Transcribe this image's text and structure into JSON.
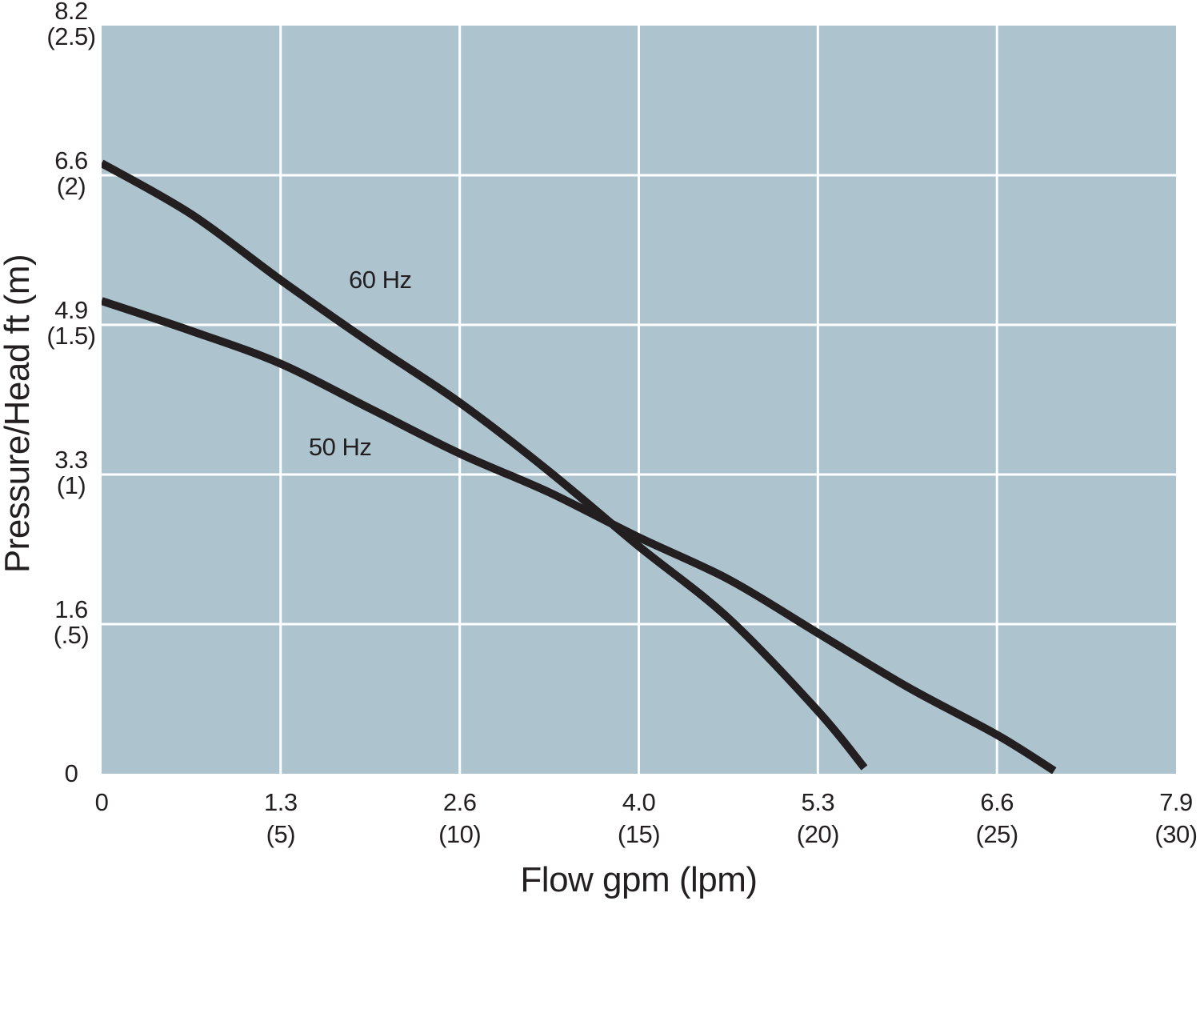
{
  "chart_data": {
    "type": "line",
    "title": "",
    "xlabel": "Flow gpm (lpm)",
    "ylabel": "Pressure/Head ft (m)",
    "grid": true,
    "legend_position": "inline-curve-labels",
    "x_range_lpm": [
      0,
      30
    ],
    "y_range_m": [
      0,
      2.5
    ],
    "x_ticks": [
      {
        "gpm": "0",
        "lpm": "",
        "lpm_value": 0
      },
      {
        "gpm": "1.3",
        "lpm": "(5)",
        "lpm_value": 5
      },
      {
        "gpm": "2.6",
        "lpm": "(10)",
        "lpm_value": 10
      },
      {
        "gpm": "4.0",
        "lpm": "(15)",
        "lpm_value": 15
      },
      {
        "gpm": "5.3",
        "lpm": "(20)",
        "lpm_value": 20
      },
      {
        "gpm": "6.6",
        "lpm": "(25)",
        "lpm_value": 25
      },
      {
        "gpm": "7.9",
        "lpm": "(30)",
        "lpm_value": 30
      }
    ],
    "y_ticks": [
      {
        "ft": "8.2",
        "m": "(2.5)",
        "m_value": 2.5
      },
      {
        "ft": "6.6",
        "m": "(2)",
        "m_value": 2.0
      },
      {
        "ft": "4.9",
        "m": "(1.5)",
        "m_value": 1.5
      },
      {
        "ft": "3.3",
        "m": "(1)",
        "m_value": 1.0
      },
      {
        "ft": "1.6",
        "m": "(.5)",
        "m_value": 0.5
      },
      {
        "ft": "0",
        "m": "",
        "m_value": 0
      }
    ],
    "series": [
      {
        "name": "60 Hz",
        "points_lpm_m": [
          [
            0,
            2.04
          ],
          [
            2.5,
            1.87
          ],
          [
            5,
            1.65
          ],
          [
            7.5,
            1.44
          ],
          [
            10,
            1.24
          ],
          [
            12.5,
            1.01
          ],
          [
            15,
            0.76
          ],
          [
            17.5,
            0.52
          ],
          [
            20,
            0.21
          ],
          [
            21.3,
            0.02
          ]
        ],
        "label_pos_lpm_m": [
          7.78,
          1.65
        ]
      },
      {
        "name": "50 Hz",
        "points_lpm_m": [
          [
            0,
            1.58
          ],
          [
            2.5,
            1.48
          ],
          [
            5,
            1.37
          ],
          [
            7.5,
            1.22
          ],
          [
            10,
            1.07
          ],
          [
            12.5,
            0.94
          ],
          [
            15,
            0.79
          ],
          [
            17.5,
            0.65
          ],
          [
            20,
            0.47
          ],
          [
            22.5,
            0.29
          ],
          [
            25,
            0.13
          ],
          [
            26.6,
            0.01
          ]
        ],
        "label_pos_lpm_m": [
          6.66,
          1.09
        ]
      }
    ],
    "colors": {
      "plot_bg": "#adc4cf",
      "grid": "#ffffff",
      "line": "#231f20",
      "text": "#231f20",
      "page_bg": "#ffffff"
    }
  }
}
